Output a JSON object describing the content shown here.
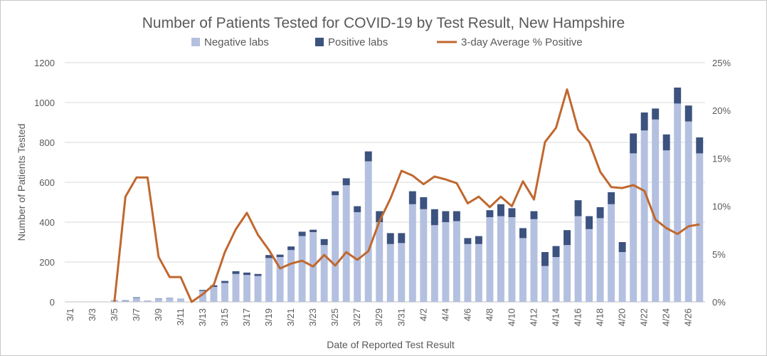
{
  "chart_data": {
    "type": "bar",
    "title": "Number of Patients Tested for COVID-19 by Test Result, New Hampshire",
    "xlabel": "Date of Reported Test Result",
    "ylabel": "Number of Patients Tested",
    "ylim": [
      0,
      1200
    ],
    "y_ticks": [
      "0",
      "200",
      "400",
      "600",
      "800",
      "1000",
      "1200"
    ],
    "y2lim": [
      0,
      25
    ],
    "y2_ticks": [
      "0%",
      "5%",
      "10%",
      "15%",
      "20%",
      "25%"
    ],
    "stacked": true,
    "grid": true,
    "legend_position": "top",
    "x_tick_labels": [
      "3/1",
      "3/3",
      "3/5",
      "3/7",
      "3/9",
      "3/11",
      "3/13",
      "3/15",
      "3/17",
      "3/19",
      "3/21",
      "3/23",
      "3/25",
      "3/27",
      "3/29",
      "3/31",
      "4/2",
      "4/4",
      "4/6",
      "4/8",
      "4/10",
      "4/12",
      "4/14",
      "4/16",
      "4/18",
      "4/20",
      "4/22",
      "4/24",
      "4/26"
    ],
    "categories": [
      "3/1",
      "3/2",
      "3/3",
      "3/4",
      "3/5",
      "3/6",
      "3/7",
      "3/8",
      "3/9",
      "3/10",
      "3/11",
      "3/12",
      "3/13",
      "3/14",
      "3/15",
      "3/16",
      "3/17",
      "3/18",
      "3/19",
      "3/20",
      "3/21",
      "3/22",
      "3/23",
      "3/24",
      "3/25",
      "3/26",
      "3/27",
      "3/28",
      "3/29",
      "3/30",
      "3/31",
      "4/1",
      "4/2",
      "4/3",
      "4/4",
      "4/5",
      "4/6",
      "4/7",
      "4/8",
      "4/9",
      "4/10",
      "4/11",
      "4/12",
      "4/13",
      "4/14",
      "4/15",
      "4/16",
      "4/17",
      "4/18",
      "4/19",
      "4/20",
      "4/21",
      "4/22",
      "4/23",
      "4/24",
      "4/25",
      "4/26",
      "4/27"
    ],
    "series": [
      {
        "name": "Negative labs",
        "kind": "bar",
        "axis": "left",
        "color": "#b4c0e0",
        "values": [
          0,
          0,
          0,
          0,
          8,
          6,
          20,
          5,
          15,
          20,
          15,
          2,
          55,
          75,
          95,
          140,
          135,
          130,
          220,
          225,
          260,
          330,
          350,
          285,
          535,
          585,
          450,
          705,
          400,
          290,
          295,
          490,
          465,
          385,
          400,
          405,
          290,
          290,
          425,
          430,
          425,
          320,
          415,
          180,
          225,
          285,
          430,
          365,
          420,
          490,
          250,
          745,
          860,
          915,
          760,
          995,
          905,
          745
        ]
      },
      {
        "name": "Positive labs",
        "kind": "bar",
        "axis": "left",
        "color": "#3c527f",
        "values": [
          0,
          0,
          0,
          0,
          1,
          2,
          3,
          1,
          2,
          1,
          1,
          0,
          5,
          8,
          10,
          14,
          12,
          10,
          15,
          12,
          18,
          22,
          12,
          30,
          20,
          35,
          30,
          50,
          55,
          55,
          50,
          65,
          60,
          80,
          55,
          50,
          30,
          40,
          35,
          60,
          45,
          50,
          40,
          70,
          55,
          75,
          80,
          65,
          55,
          60,
          50,
          100,
          90,
          55,
          80,
          80,
          80,
          80
        ]
      },
      {
        "name": "3-day Average % Positive",
        "kind": "line",
        "axis": "right",
        "color": "#c0682f",
        "values": [
          null,
          null,
          null,
          null,
          0,
          11.0,
          13.0,
          13.0,
          4.7,
          2.6,
          2.6,
          0,
          0.8,
          1.8,
          5.2,
          7.6,
          9.3,
          7.0,
          5.4,
          3.5,
          4.0,
          4.3,
          3.7,
          4.9,
          3.8,
          5.2,
          4.4,
          5.3,
          8.4,
          10.8,
          13.7,
          13.2,
          12.3,
          13.1,
          12.8,
          12.4,
          10.3,
          11.0,
          9.9,
          11.0,
          10.0,
          12.6,
          10.7,
          16.7,
          18.2,
          22.2,
          18.0,
          16.7,
          13.6,
          12.0,
          11.9,
          12.2,
          11.6,
          8.6,
          7.7,
          7.1,
          7.9,
          8.1
        ]
      }
    ]
  }
}
